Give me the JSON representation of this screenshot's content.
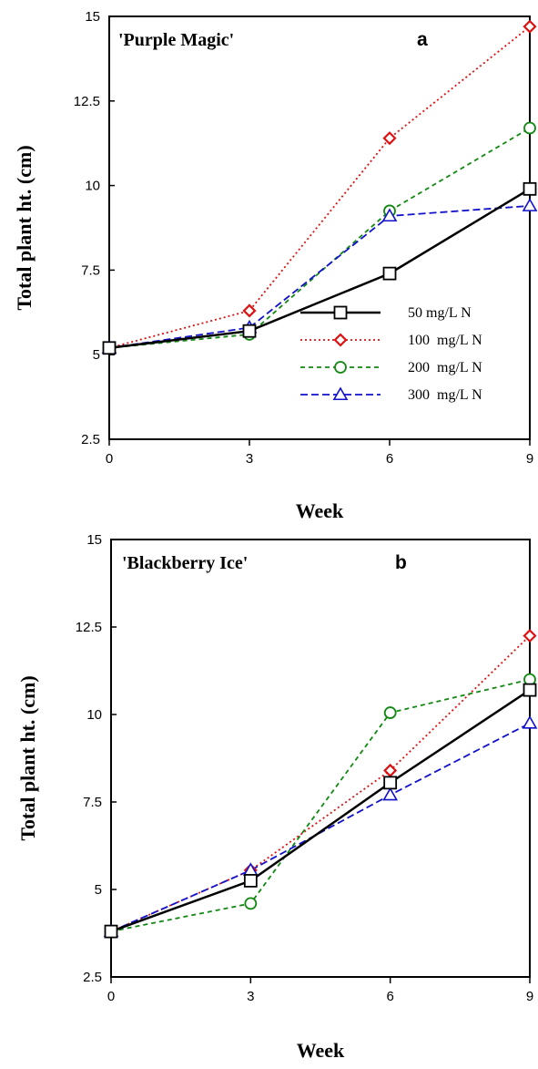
{
  "chart_data": [
    {
      "type": "line",
      "title": "'Purple Magic'",
      "panel_label": "a",
      "xlabel": "Week",
      "ylabel": "Total plant ht. (cm)",
      "x": [
        0,
        3,
        6,
        9
      ],
      "xticks": [
        "0",
        "3",
        "6",
        "9"
      ],
      "xlim": [
        0,
        9
      ],
      "ylim": [
        2.5,
        15
      ],
      "yticks": [
        "2.5",
        "5",
        "7.5",
        "10",
        "12.5",
        "15"
      ],
      "legend": "inside, lower right",
      "series": [
        {
          "name": "50 mg/L N",
          "values": [
            5.2,
            5.7,
            7.4,
            9.9
          ],
          "color": "#000000",
          "marker": "square",
          "line": "solid"
        },
        {
          "name": "100  mg/L N",
          "values": [
            5.2,
            6.3,
            11.4,
            14.7
          ],
          "color": "#dd1111",
          "marker": "diamond",
          "line": "dotted"
        },
        {
          "name": "200  mg/L N",
          "values": [
            5.2,
            5.6,
            9.25,
            11.7
          ],
          "color": "#118811",
          "marker": "circle",
          "line": "short-dash"
        },
        {
          "name": "300  mg/L N",
          "values": [
            5.2,
            5.8,
            9.1,
            9.4
          ],
          "color": "#1111cc",
          "marker": "triangle",
          "line": "dash"
        }
      ]
    },
    {
      "type": "line",
      "title": "'Blackberry Ice'",
      "panel_label": "b",
      "xlabel": "Week",
      "ylabel": "Total plant ht. (cm)",
      "x": [
        0,
        3,
        6,
        9
      ],
      "xticks": [
        "0",
        "3",
        "6",
        "9"
      ],
      "xlim": [
        0,
        9
      ],
      "ylim": [
        2.5,
        15
      ],
      "yticks": [
        "2.5",
        "5",
        "7.5",
        "10",
        "12.5",
        "15"
      ],
      "series": [
        {
          "name": "50 mg/L N",
          "values": [
            3.8,
            5.25,
            8.05,
            10.7
          ],
          "color": "#000000",
          "marker": "square",
          "line": "solid"
        },
        {
          "name": "100  mg/L N",
          "values": [
            3.8,
            5.55,
            8.4,
            12.25
          ],
          "color": "#dd1111",
          "marker": "diamond",
          "line": "dotted"
        },
        {
          "name": "200  mg/L N",
          "values": [
            3.8,
            4.6,
            10.05,
            11.0
          ],
          "color": "#118811",
          "marker": "circle",
          "line": "short-dash"
        },
        {
          "name": "300  mg/L N",
          "values": [
            3.8,
            5.55,
            7.7,
            9.75
          ],
          "color": "#1111cc",
          "marker": "triangle",
          "line": "dash"
        }
      ]
    }
  ]
}
